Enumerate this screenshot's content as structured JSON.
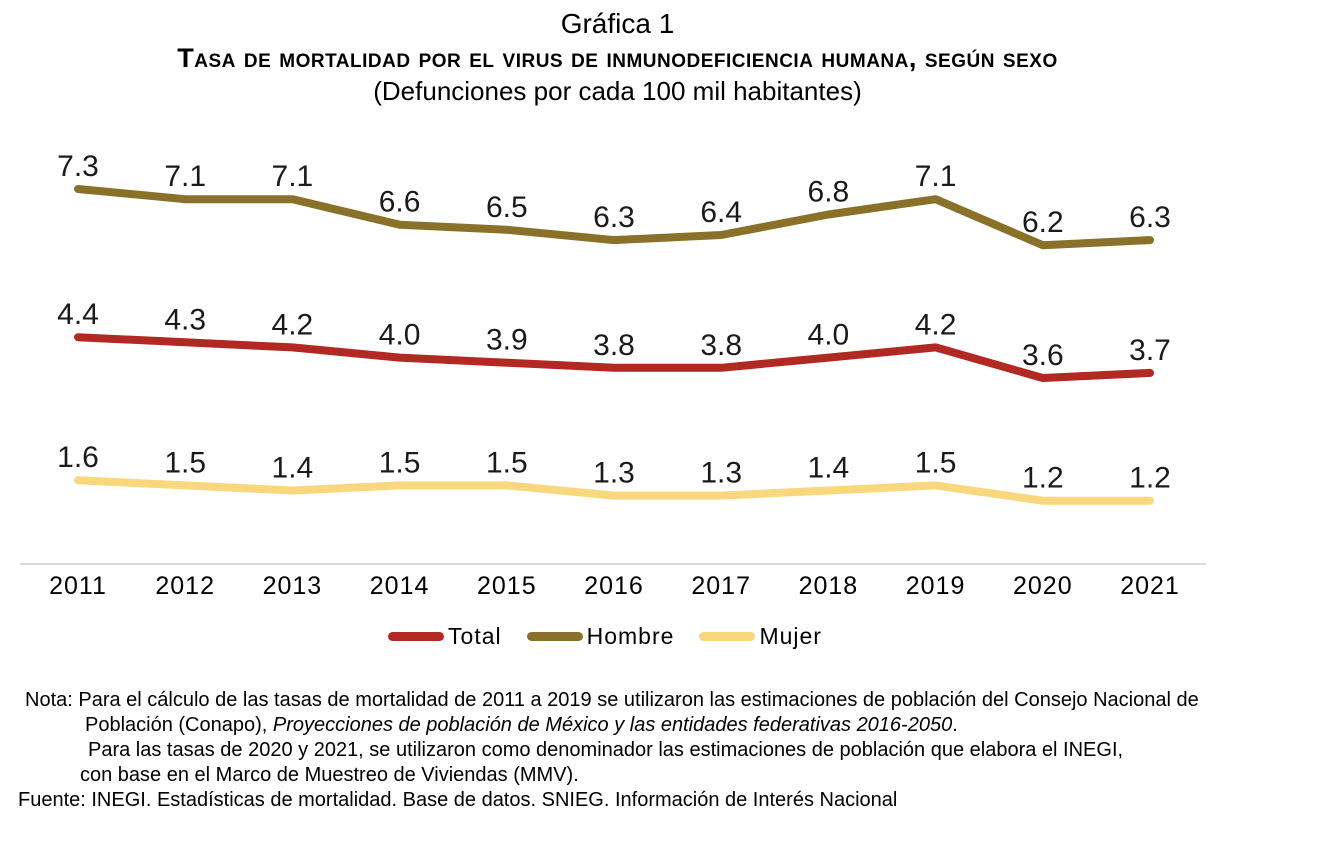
{
  "header": {
    "title": "Gráfica 1",
    "main_title": "Tasa de mortalidad por el virus de inmunodeficiencia humana, según sexo",
    "subtitle": "(Defunciones por cada 100 mil habitantes)"
  },
  "chart_data": {
    "type": "line",
    "title": "Gráfica 1",
    "subtitle": "Tasa de mortalidad por el virus de inmunodeficiencia humana, según sexo",
    "units": "Defunciones por cada 100 mil habitantes",
    "categories": [
      "2011",
      "2012",
      "2013",
      "2014",
      "2015",
      "2016",
      "2017",
      "2018",
      "2019",
      "2020",
      "2021"
    ],
    "series": [
      {
        "name": "Total",
        "color": "#B22822",
        "values": [
          4.4,
          4.3,
          4.2,
          4.0,
          3.9,
          3.8,
          3.8,
          4.0,
          4.2,
          3.6,
          3.7
        ]
      },
      {
        "name": "Hombre",
        "color": "#8A7129",
        "values": [
          7.3,
          7.1,
          7.1,
          6.6,
          6.5,
          6.3,
          6.4,
          6.8,
          7.1,
          6.2,
          6.3
        ]
      },
      {
        "name": "Mujer",
        "color": "#F9D77C",
        "values": [
          1.6,
          1.5,
          1.4,
          1.5,
          1.5,
          1.3,
          1.3,
          1.4,
          1.5,
          1.2,
          1.2
        ]
      }
    ],
    "ylim": [
      0,
      8
    ],
    "grid": false,
    "data_labels": true,
    "legend_position": "bottom",
    "axis_line_color": "#D9D9D9",
    "label_color": "#1A1A1A",
    "xlabel": "",
    "ylabel": ""
  },
  "notes": {
    "label": "Nota:",
    "line1": "Para el cálculo de las tasas de mortalidad de 2011 a 2019 se utilizaron las estimaciones de población del Consejo Nacional de",
    "line2_regular": "Población (Conapo), ",
    "line2_italic": "Proyecciones de población de México y las entidades federativas 2016-2050",
    "line2_end": ".",
    "line3": "Para las tasas de 2020 y 2021, se utilizaron como denominador las estimaciones de población que elabora el INEGI,",
    "line4": "con base en el Marco de Muestreo de Viviendas (MMV).",
    "fuente": "Fuente: INEGI. Estadísticas de mortalidad. Base de datos. SNIEG. Información de Interés Nacional"
  }
}
